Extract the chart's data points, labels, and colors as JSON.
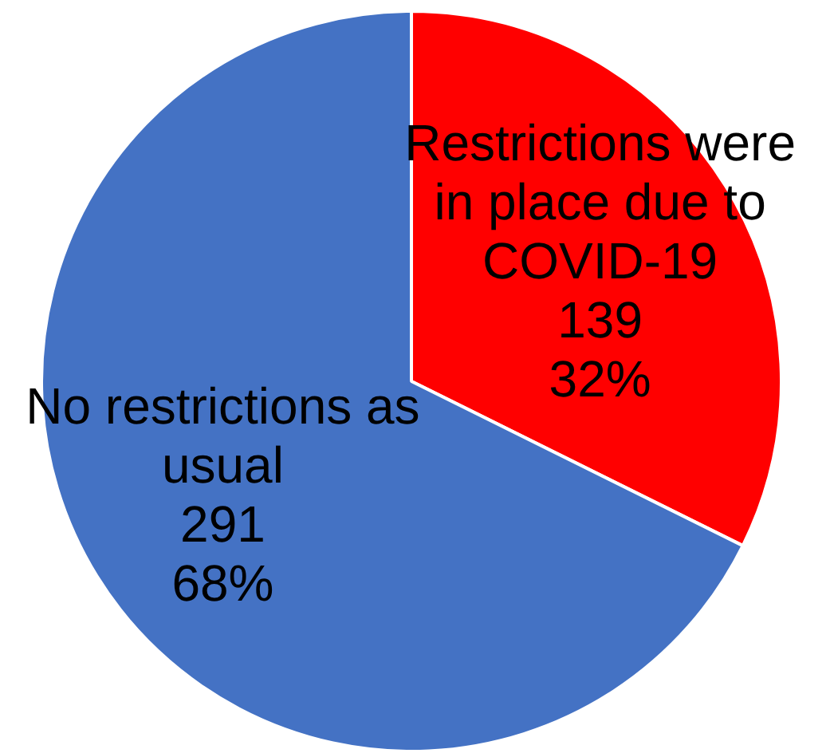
{
  "chart_data": {
    "type": "pie",
    "categories": [
      "Restrictions were in place due to COVID-19",
      "No restrictions as usual"
    ],
    "values": [
      139,
      291
    ],
    "colors": [
      "#ff0000",
      "#4472c4"
    ],
    "value_labels": [
      "139\n32%",
      "291\n68%"
    ]
  }
}
